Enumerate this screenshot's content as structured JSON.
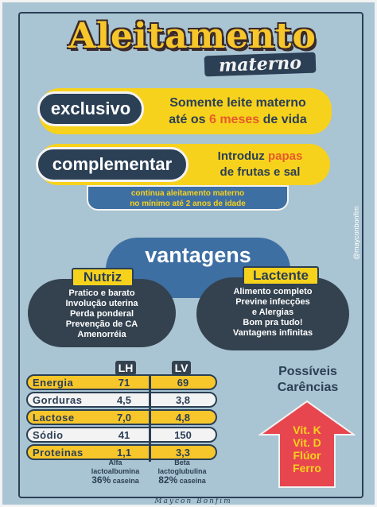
{
  "title": {
    "main": "Aleitamento",
    "sub": "materno"
  },
  "exclusivo": {
    "tag": "exclusivo",
    "line1": "Somente leite materno",
    "line2_pre": "até os ",
    "line2_hl": "6 meses",
    "line2_post": " de vida"
  },
  "complementar": {
    "tag": "complementar",
    "line1_pre": "Introduz ",
    "line1_hl": "papas",
    "line2": "de frutas e sal"
  },
  "note": {
    "line1": "continua aleitamento materno",
    "line2": "no mínimo até 2 anos de idade"
  },
  "handle": "@mayconbonfim",
  "vantagens": {
    "title": "vantagens",
    "nutriz": {
      "label": "Nutriz",
      "items": [
        "Pratico e barato",
        "Involução uterina",
        "Perda ponderal",
        "Prevenção de CA",
        "Amenorréia"
      ]
    },
    "lactente": {
      "label": "Lactente",
      "items": [
        "Alimento completo",
        "Previne infecções",
        "e Alergias",
        "Bom pra tudo!",
        "Vantagens infinitas"
      ]
    }
  },
  "table": {
    "col1": "LH",
    "col2": "LV",
    "rows": [
      {
        "name": "Energia",
        "lh": "71",
        "lv": "69",
        "style": "yellow"
      },
      {
        "name": "Gorduras",
        "lh": "4,5",
        "lv": "3,8",
        "style": "white"
      },
      {
        "name": "Lactose",
        "lh": "7,0",
        "lv": "4,8",
        "style": "yellow"
      },
      {
        "name": "Sódio",
        "lh": "41",
        "lv": "150",
        "style": "white"
      },
      {
        "name": "Proteinas",
        "lh": "1,1",
        "lv": "3,3",
        "style": "yellow"
      }
    ],
    "foot_lh": {
      "l1": "Alfa",
      "l2": "lactoalbumina",
      "pct": "36%",
      "rest": " caseina"
    },
    "foot_lv": {
      "l1": "Beta",
      "l2": "lactoglubulina",
      "pct": "82%",
      "rest": " caseina"
    }
  },
  "carencias": {
    "title1": "Possíveis",
    "title2": "Carências",
    "items": [
      "Vit. K",
      "Vit. D",
      "Flúor",
      "Ferro"
    ]
  },
  "signature": "Maycon  Bonfim",
  "colors": {
    "background": "#a9c4d2",
    "navy": "#2b3f55",
    "yellow": "#f7d21c",
    "accent": "#e65a2b",
    "arrow": "#e8464f"
  }
}
